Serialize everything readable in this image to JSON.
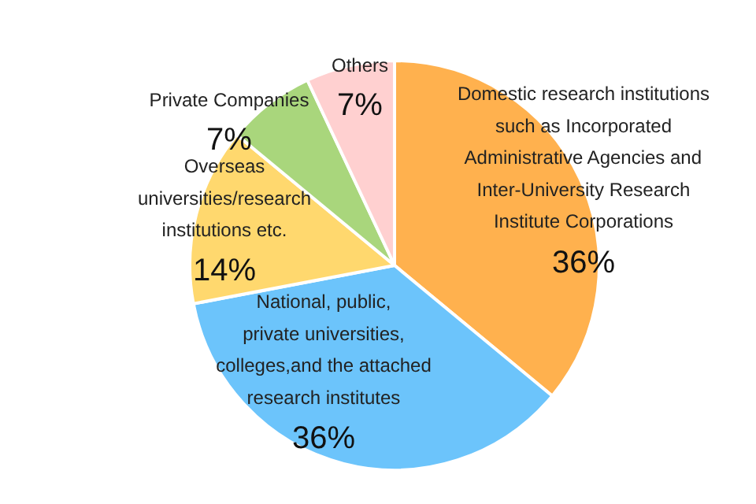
{
  "chart_data": {
    "type": "pie",
    "categories": [
      "Domestic research institutions\nsuch as Incorporated\nAdministrative Agencies and\nInter-University Research\nInstitute Corporations",
      "National, public,\nprivate universities,\ncolleges,and the attached\nresearch institutes",
      "Overseas\nuniversities/research\ninstitutions etc.",
      "Private Companies",
      "Others"
    ],
    "values": [
      36,
      36,
      14,
      7,
      7
    ],
    "value_labels": [
      "36%",
      "36%",
      "14%",
      "7%",
      "7%"
    ],
    "colors": [
      "#ffb14e",
      "#6cc4fb",
      "#ffd86e",
      "#a9d67c",
      "#ffd0d0"
    ]
  }
}
